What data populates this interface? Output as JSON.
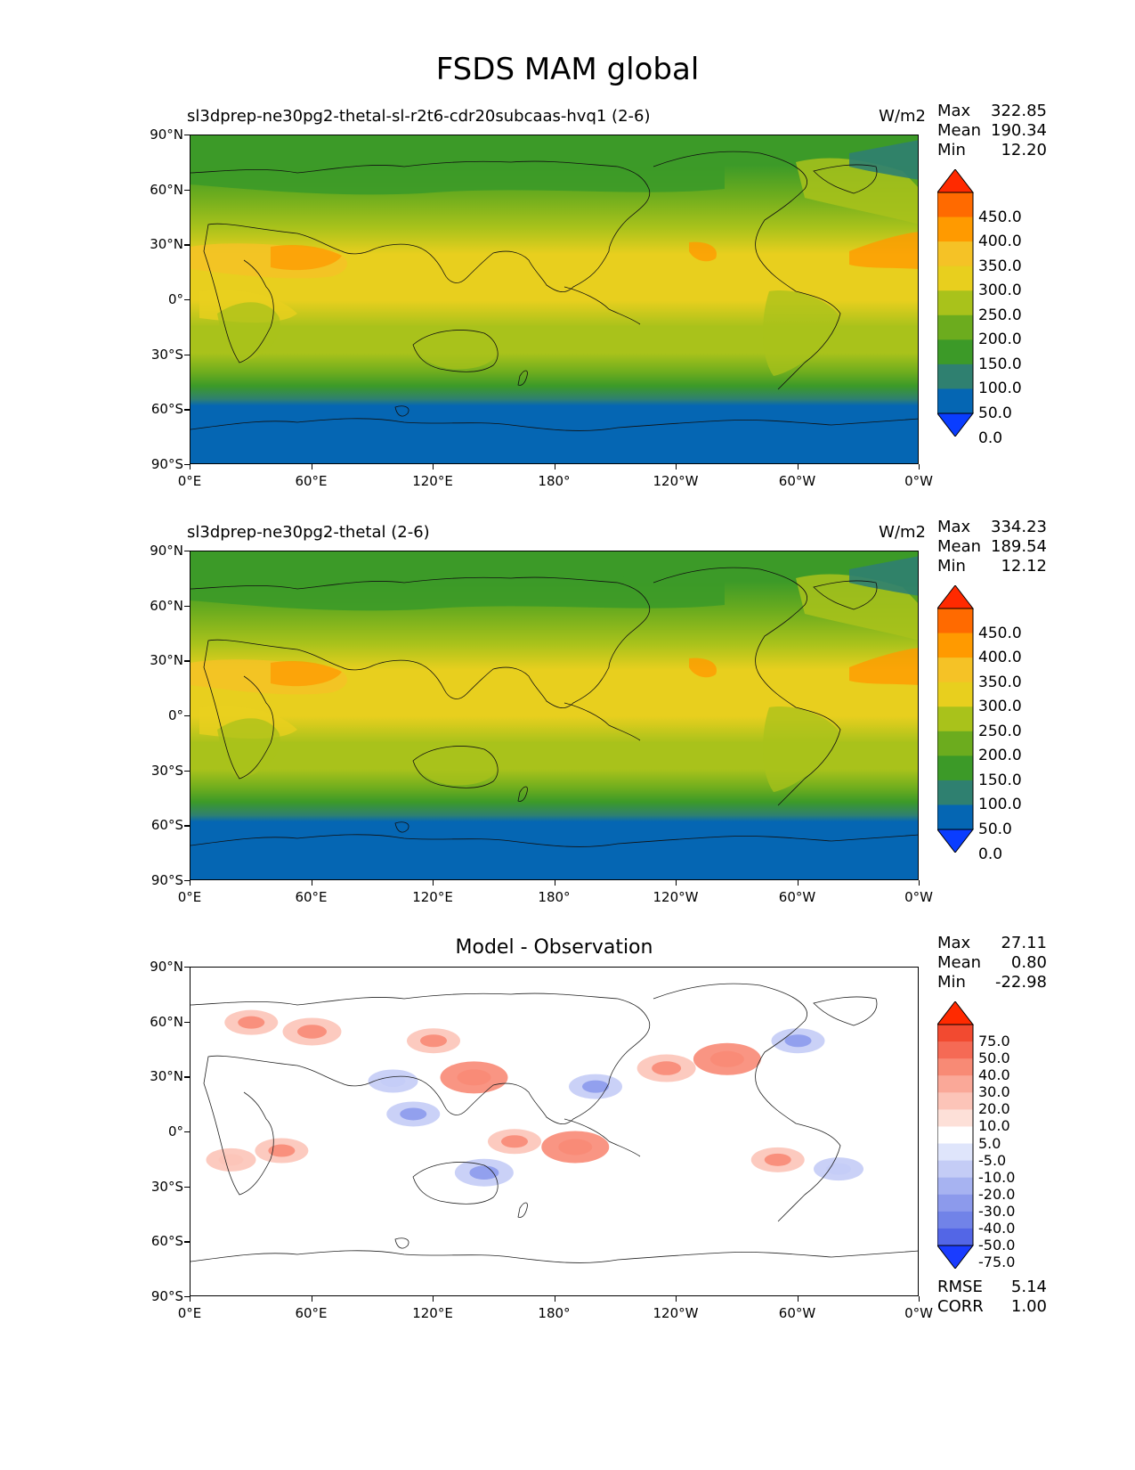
{
  "figure_title": "FSDS MAM global",
  "panels": [
    {
      "title": "sl3dprep-ne30pg2-thetal-sl-r2t6-cdr20subcaas-hvq1 (2-6)",
      "units": "W/m2",
      "stats": {
        "max_label": "Max",
        "max": "322.85",
        "mean_label": "Mean",
        "mean": "190.34",
        "min_label": "Min",
        "min": "12.20"
      },
      "colorbar": {
        "labels": [
          "450.0",
          "400.0",
          "350.0",
          "300.0",
          "250.0",
          "200.0",
          "150.0",
          "100.0",
          "50.0",
          "0.0"
        ],
        "colors": [
          "#ff2a00",
          "#ff6a00",
          "#ff9a00",
          "#f5c226",
          "#e8cf1e",
          "#a9c21b",
          "#6cac1e",
          "#3c9a28",
          "#2f8070",
          "#0566b3",
          "#0a3dff"
        ]
      }
    },
    {
      "title": "sl3dprep-ne30pg2-thetal (2-6)",
      "units": "W/m2",
      "stats": {
        "max_label": "Max",
        "max": "334.23",
        "mean_label": "Mean",
        "mean": "189.54",
        "min_label": "Min",
        "min": "12.12"
      },
      "colorbar": {
        "labels": [
          "450.0",
          "400.0",
          "350.0",
          "300.0",
          "250.0",
          "200.0",
          "150.0",
          "100.0",
          "50.0",
          "0.0"
        ],
        "colors": [
          "#ff2a00",
          "#ff6a00",
          "#ff9a00",
          "#f5c226",
          "#e8cf1e",
          "#a9c21b",
          "#6cac1e",
          "#3c9a28",
          "#2f8070",
          "#0566b3",
          "#0a3dff"
        ]
      }
    },
    {
      "title": "Model - Observation",
      "stats": {
        "max_label": "Max",
        "max": "27.11",
        "mean_label": "Mean",
        "mean": "0.80",
        "min_label": "Min",
        "min": "-22.98"
      },
      "extra_stats": {
        "rmse_label": "RMSE",
        "rmse": "5.14",
        "corr_label": "CORR",
        "corr": "1.00"
      },
      "colorbar": {
        "labels": [
          "75.0",
          "50.0",
          "40.0",
          "30.0",
          "20.0",
          "10.0",
          "5.0",
          "-5.0",
          "-10.0",
          "-20.0",
          "-30.0",
          "-40.0",
          "-50.0",
          "-75.0"
        ],
        "colors": [
          "#ff2a00",
          "#f24a30",
          "#f56a55",
          "#f88a75",
          "#faa898",
          "#fcc4b8",
          "#fde0d8",
          "#ffffff",
          "#dfe5fb",
          "#c4ccf6",
          "#a7b3f1",
          "#8c9aec",
          "#7183e8",
          "#5366e6",
          "#1a3cff"
        ]
      }
    }
  ],
  "axes": {
    "lat_ticks": [
      "90°N",
      "60°N",
      "30°N",
      "0°",
      "30°S",
      "60°S",
      "90°S"
    ],
    "lon_ticks": [
      "0°E",
      "60°E",
      "120°E",
      "180°",
      "120°W",
      "60°W",
      "0°W"
    ]
  },
  "chart_data": [
    {
      "type": "heatmap",
      "title": "sl3dprep-ne30pg2-thetal-sl-r2t6-cdr20subcaas-hvq1 (2-6)",
      "units": "W/m2",
      "x_range": [
        0,
        360
      ],
      "y_range": [
        -90,
        90
      ],
      "contour_levels": [
        0,
        50,
        100,
        150,
        200,
        250,
        300,
        350,
        400,
        450
      ],
      "latitude_bands": [
        {
          "lat_range": [
            -90,
            -65
          ],
          "value_range": [
            0,
            50
          ]
        },
        {
          "lat_range": [
            -65,
            -52
          ],
          "value_range": [
            50,
            100
          ]
        },
        {
          "lat_range": [
            -52,
            -38
          ],
          "value_range": [
            100,
            150
          ]
        },
        {
          "lat_range": [
            -38,
            -22
          ],
          "value_range": [
            150,
            200
          ]
        },
        {
          "lat_range": [
            -22,
            5
          ],
          "value_range": [
            200,
            250
          ]
        },
        {
          "lat_range": [
            5,
            30
          ],
          "value_range": [
            250,
            300
          ]
        },
        {
          "lat_range": [
            30,
            42
          ],
          "value_range": [
            200,
            250
          ]
        },
        {
          "lat_range": [
            42,
            55
          ],
          "value_range": [
            150,
            200
          ]
        },
        {
          "lat_range": [
            55,
            90
          ],
          "value_range": [
            100,
            150
          ]
        }
      ],
      "stats": {
        "max": 322.85,
        "mean": 190.34,
        "min": 12.2
      }
    },
    {
      "type": "heatmap",
      "title": "sl3dprep-ne30pg2-thetal (2-6)",
      "units": "W/m2",
      "x_range": [
        0,
        360
      ],
      "y_range": [
        -90,
        90
      ],
      "contour_levels": [
        0,
        50,
        100,
        150,
        200,
        250,
        300,
        350,
        400,
        450
      ],
      "latitude_bands": [
        {
          "lat_range": [
            -90,
            -65
          ],
          "value_range": [
            0,
            50
          ]
        },
        {
          "lat_range": [
            -65,
            -52
          ],
          "value_range": [
            50,
            100
          ]
        },
        {
          "lat_range": [
            -52,
            -38
          ],
          "value_range": [
            100,
            150
          ]
        },
        {
          "lat_range": [
            -38,
            -22
          ],
          "value_range": [
            150,
            200
          ]
        },
        {
          "lat_range": [
            -22,
            5
          ],
          "value_range": [
            200,
            250
          ]
        },
        {
          "lat_range": [
            5,
            30
          ],
          "value_range": [
            250,
            300
          ]
        },
        {
          "lat_range": [
            30,
            42
          ],
          "value_range": [
            200,
            250
          ]
        },
        {
          "lat_range": [
            42,
            55
          ],
          "value_range": [
            150,
            200
          ]
        },
        {
          "lat_range": [
            55,
            90
          ],
          "value_range": [
            100,
            150
          ]
        }
      ],
      "stats": {
        "max": 334.23,
        "mean": 189.54,
        "min": 12.12
      }
    },
    {
      "type": "heatmap",
      "title": "Model - Observation",
      "x_range": [
        0,
        360
      ],
      "y_range": [
        -90,
        90
      ],
      "contour_levels": [
        -75,
        -50,
        -40,
        -30,
        -20,
        -10,
        -5,
        5,
        10,
        20,
        30,
        40,
        50,
        75
      ],
      "anomalies": [
        {
          "lon": 30,
          "lat": 60,
          "value": 12
        },
        {
          "lon": 60,
          "lat": 55,
          "value": 15
        },
        {
          "lon": 120,
          "lat": 50,
          "value": 12
        },
        {
          "lon": 140,
          "lat": 30,
          "value": 20
        },
        {
          "lon": 100,
          "lat": 28,
          "value": -10
        },
        {
          "lon": 110,
          "lat": 10,
          "value": -12
        },
        {
          "lon": 145,
          "lat": -22,
          "value": -15
        },
        {
          "lon": 160,
          "lat": -5,
          "value": 12
        },
        {
          "lon": 190,
          "lat": -8,
          "value": 20
        },
        {
          "lon": 200,
          "lat": 25,
          "value": -12
        },
        {
          "lon": 235,
          "lat": 35,
          "value": 15
        },
        {
          "lon": 265,
          "lat": 40,
          "value": 20
        },
        {
          "lon": 300,
          "lat": 50,
          "value": -12
        },
        {
          "lon": 290,
          "lat": -15,
          "value": 12
        },
        {
          "lon": 320,
          "lat": -20,
          "value": -10
        },
        {
          "lon": 20,
          "lat": -15,
          "value": 10
        },
        {
          "lon": 45,
          "lat": -10,
          "value": 12
        }
      ],
      "stats": {
        "max": 27.11,
        "mean": 0.8,
        "min": -22.98,
        "rmse": 5.14,
        "corr": 1.0
      }
    }
  ]
}
